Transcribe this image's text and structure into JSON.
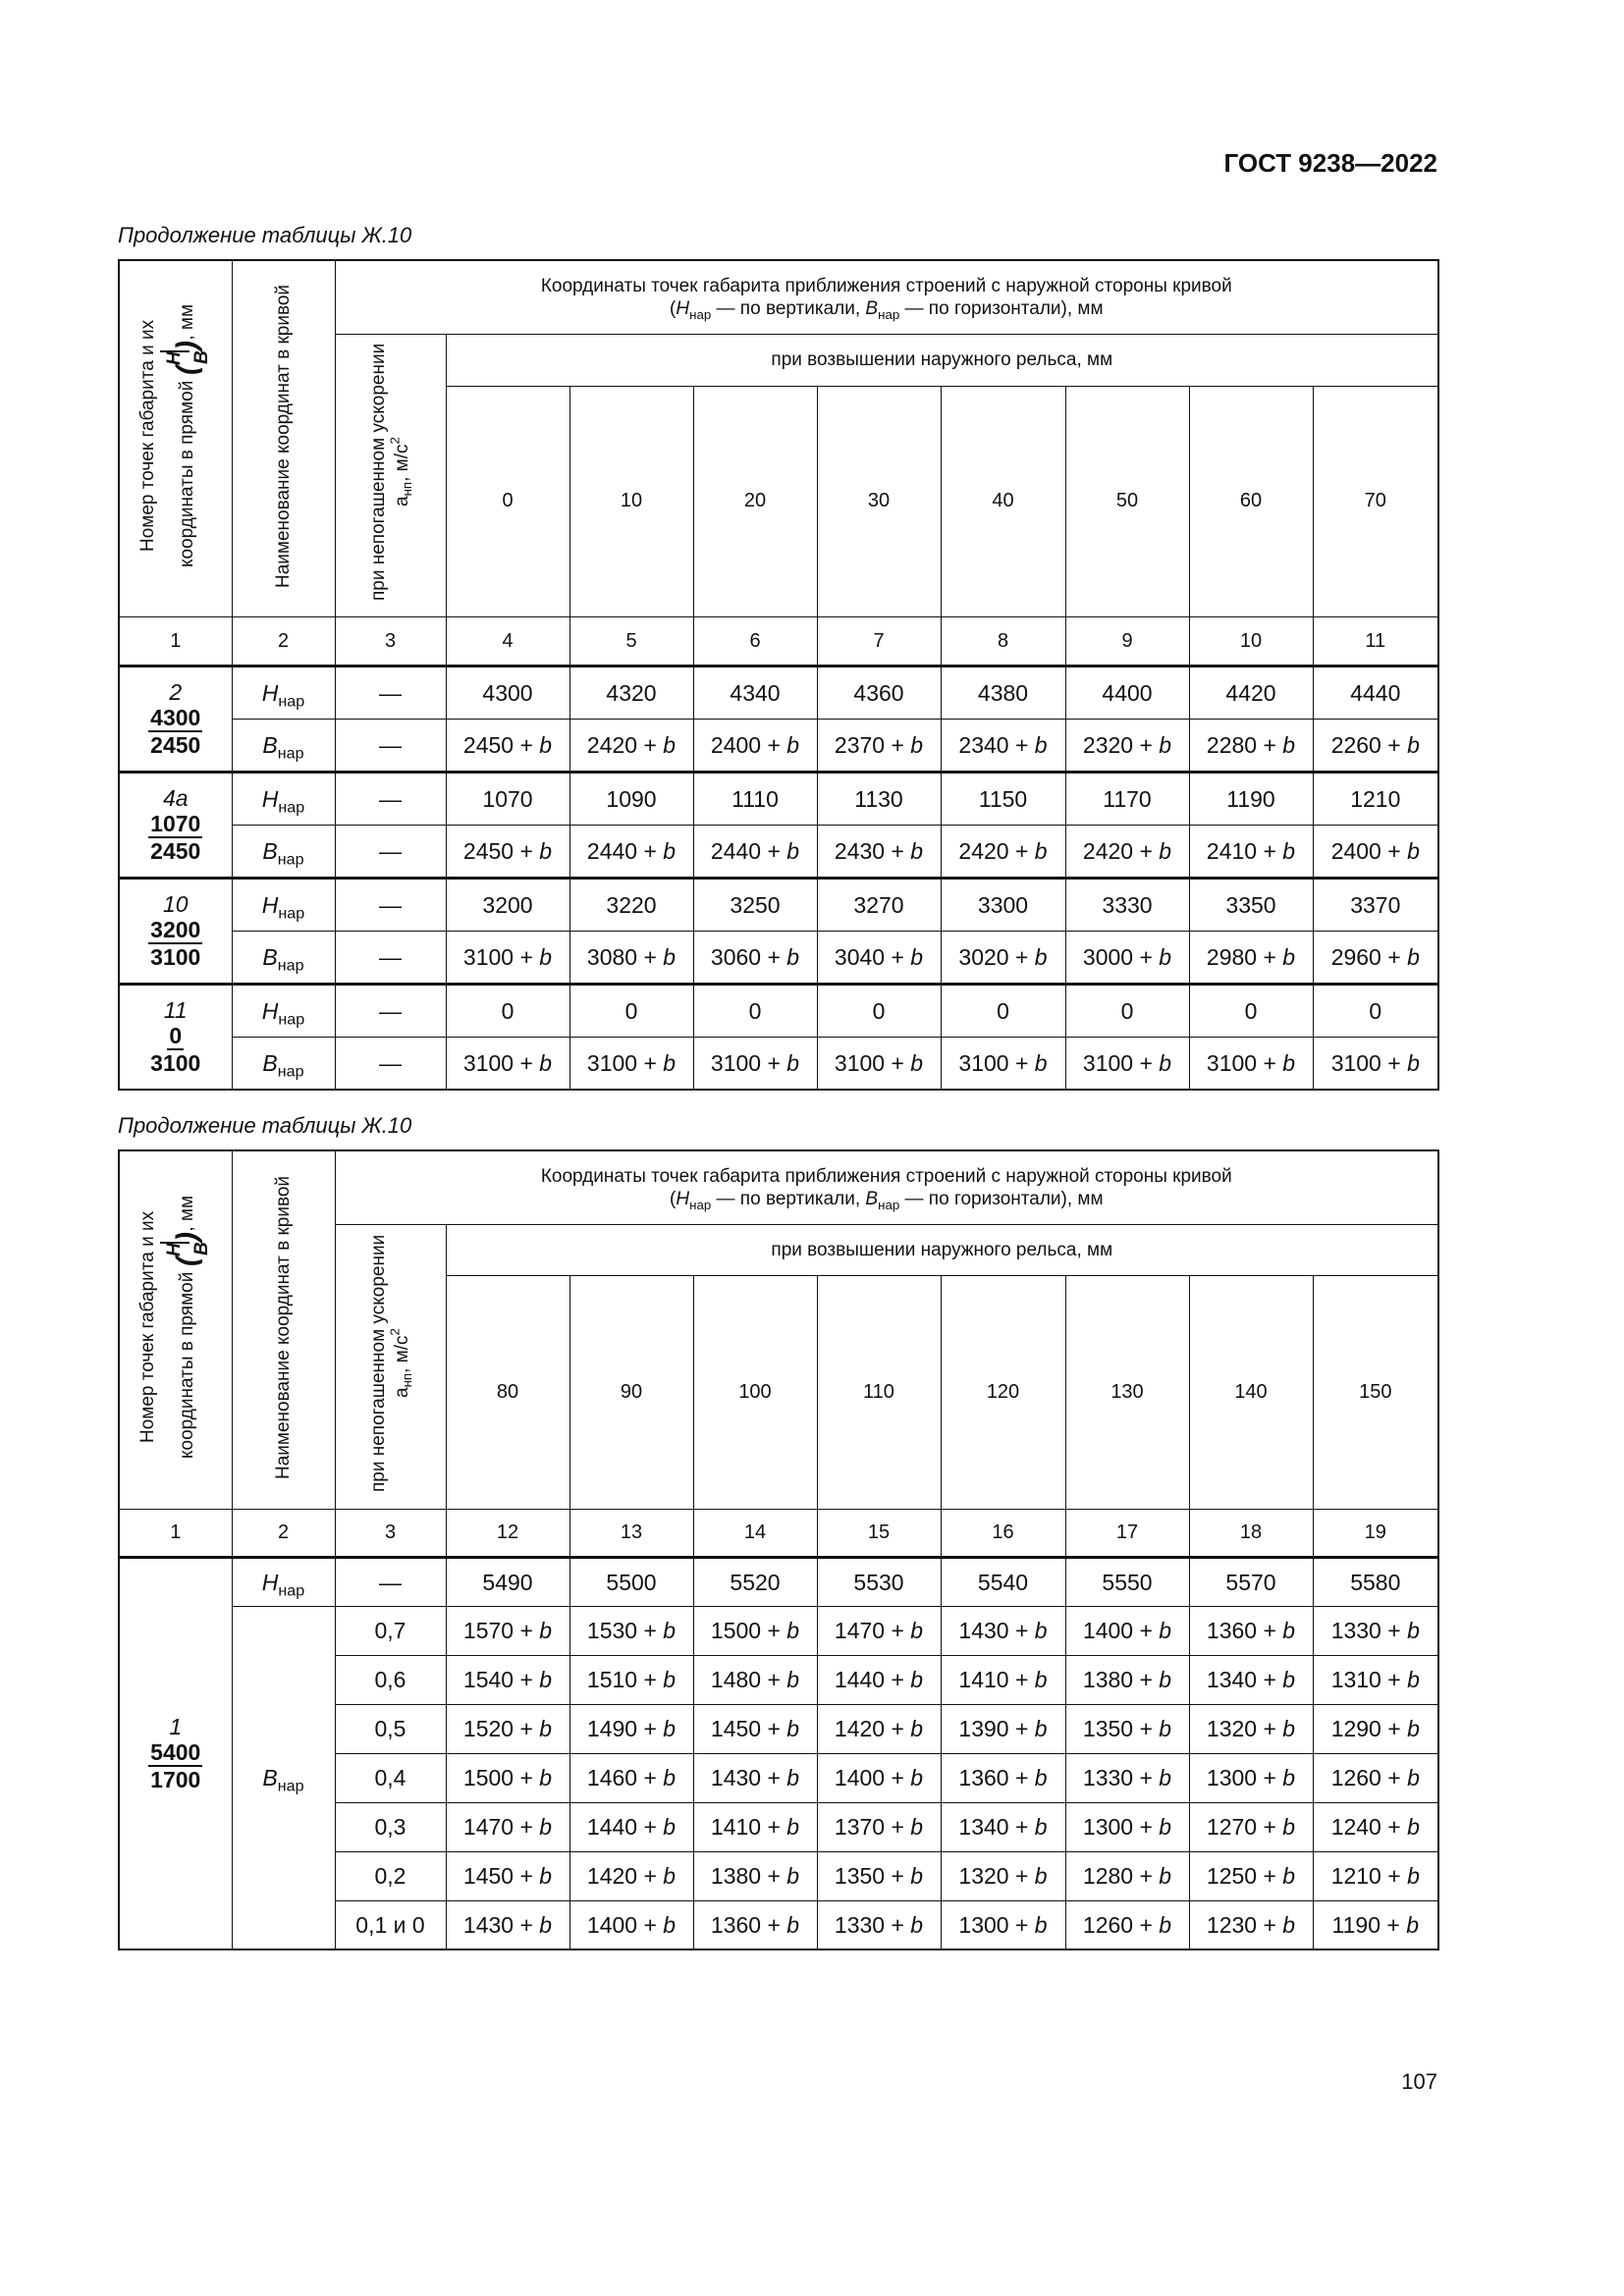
{
  "header": {
    "doc_id": "ГОСТ 9238—2022"
  },
  "common_headers": {
    "col1_text": "Номер точек габарита и их координаты в прямой",
    "col1_frac_top": "H",
    "col1_frac_bottom": "B",
    "col1_unit": ", мм",
    "col2_text": "Наименование координат в кривой",
    "col3_text": "при непогашенном ускорении a",
    "col3_sub": "нп",
    "col3_unit": ", м/с",
    "col3_sup": "2",
    "main_line1": "Координаты точек габарита приближения строений с наружной стороны кривой",
    "main_line2_open": "(",
    "main_h": "H",
    "main_sub": "нар",
    "main_mid": " — по вертикали, ",
    "main_b": "B",
    "main_end": " — по горизонтали), мм",
    "rise_label": "при возвышении наружного рельса, мм"
  },
  "tables": [
    {
      "caption": "Продолжение таблицы Ж.10",
      "rise_values": [
        "0",
        "10",
        "20",
        "30",
        "40",
        "50",
        "60",
        "70"
      ],
      "col_numbers": [
        "1",
        "2",
        "3",
        "4",
        "5",
        "6",
        "7",
        "8",
        "9",
        "10",
        "11"
      ],
      "groups": [
        {
          "point": "2",
          "h": "4300",
          "b": "2450",
          "rows": [
            {
              "coord": "H",
              "sub": "нар",
              "accel": "—",
              "values": [
                "4300",
                "4320",
                "4340",
                "4360",
                "4380",
                "4400",
                "4420",
                "4440"
              ]
            },
            {
              "coord": "B",
              "sub": "нар",
              "accel": "—",
              "values": [
                "2450 + b",
                "2420 + b",
                "2400 + b",
                "2370 + b",
                "2340 + b",
                "2320 + b",
                "2280 + b",
                "2260 + b"
              ]
            }
          ]
        },
        {
          "point": "4а",
          "h": "1070",
          "b": "2450",
          "rows": [
            {
              "coord": "H",
              "sub": "нар",
              "accel": "—",
              "values": [
                "1070",
                "1090",
                "1110",
                "1130",
                "1150",
                "1170",
                "1190",
                "1210"
              ]
            },
            {
              "coord": "B",
              "sub": "нар",
              "accel": "—",
              "values": [
                "2450 + b",
                "2440 + b",
                "2440 + b",
                "2430 + b",
                "2420 + b",
                "2420 + b",
                "2410 + b",
                "2400 + b"
              ]
            }
          ]
        },
        {
          "point": "10",
          "h": "3200",
          "b": "3100",
          "rows": [
            {
              "coord": "H",
              "sub": "нар",
              "accel": "—",
              "values": [
                "3200",
                "3220",
                "3250",
                "3270",
                "3300",
                "3330",
                "3350",
                "3370"
              ]
            },
            {
              "coord": "B",
              "sub": "нар",
              "accel": "—",
              "values": [
                "3100 + b",
                "3080 + b",
                "3060 + b",
                "3040 + b",
                "3020 + b",
                "3000 + b",
                "2980 + b",
                "2960 + b"
              ]
            }
          ]
        },
        {
          "point": "11",
          "h": "0",
          "b": "3100",
          "rows": [
            {
              "coord": "H",
              "sub": "нар",
              "accel": "—",
              "values": [
                "0",
                "0",
                "0",
                "0",
                "0",
                "0",
                "0",
                "0"
              ]
            },
            {
              "coord": "B",
              "sub": "нар",
              "accel": "—",
              "values": [
                "3100 + b",
                "3100 + b",
                "3100 + b",
                "3100 + b",
                "3100 + b",
                "3100 + b",
                "3100 + b",
                "3100 + b"
              ]
            }
          ]
        }
      ]
    },
    {
      "caption": "Продолжение таблицы Ж.10",
      "rise_values": [
        "80",
        "90",
        "100",
        "110",
        "120",
        "130",
        "140",
        "150"
      ],
      "col_numbers": [
        "1",
        "2",
        "3",
        "12",
        "13",
        "14",
        "15",
        "16",
        "17",
        "18",
        "19"
      ],
      "groups": [
        {
          "point": "1",
          "h": "5400",
          "b": "1700",
          "rows": [
            {
              "coord": "H",
              "sub": "нар",
              "accel": "—",
              "values": [
                "5490",
                "5500",
                "5520",
                "5530",
                "5540",
                "5550",
                "5570",
                "5580"
              ]
            },
            {
              "coord": "B",
              "sub": "нар",
              "accel": "0,7",
              "values": [
                "1570 + b",
                "1530 + b",
                "1500 + b",
                "1470 + b",
                "1430 + b",
                "1400 + b",
                "1360 + b",
                "1330 + b"
              ]
            },
            {
              "coord": "B",
              "sub": "нар",
              "accel": "0,6",
              "values": [
                "1540 + b",
                "1510 + b",
                "1480 + b",
                "1440 + b",
                "1410 + b",
                "1380 + b",
                "1340 + b",
                "1310 + b"
              ]
            },
            {
              "coord": "B",
              "sub": "нар",
              "accel": "0,5",
              "values": [
                "1520 + b",
                "1490 + b",
                "1450 + b",
                "1420 + b",
                "1390 + b",
                "1350 + b",
                "1320 + b",
                "1290 + b"
              ]
            },
            {
              "coord": "B",
              "sub": "нар",
              "accel": "0,4",
              "values": [
                "1500 + b",
                "1460 + b",
                "1430 + b",
                "1400 + b",
                "1360 + b",
                "1330 + b",
                "1300 + b",
                "1260 + b"
              ]
            },
            {
              "coord": "B",
              "sub": "нар",
              "accel": "0,3",
              "values": [
                "1470 + b",
                "1440 + b",
                "1410 + b",
                "1370 + b",
                "1340 + b",
                "1300 + b",
                "1270 + b",
                "1240 + b"
              ]
            },
            {
              "coord": "B",
              "sub": "нар",
              "accel": "0,2",
              "values": [
                "1450 + b",
                "1420 + b",
                "1380 + b",
                "1350 + b",
                "1320 + b",
                "1280 + b",
                "1250 + b",
                "1210 + b"
              ]
            },
            {
              "coord": "B",
              "sub": "нар",
              "accel": "0,1 и 0",
              "values": [
                "1430 + b",
                "1400 + b",
                "1360 + b",
                "1330 + b",
                "1300 + b",
                "1260 + b",
                "1230 + b",
                "1190 + b"
              ]
            }
          ]
        }
      ]
    }
  ],
  "footer": {
    "page_number": "107"
  }
}
